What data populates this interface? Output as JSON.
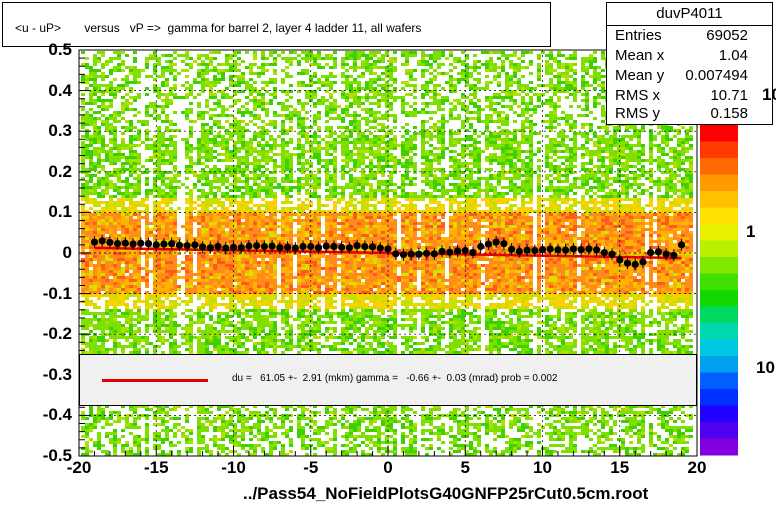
{
  "title": "<u - uP>       versus   vP =>  gamma for barrel 2, layer 4 ladder 11, all wafers",
  "stats": {
    "name": "duvP4011",
    "rows": [
      {
        "label": "Entries",
        "value": "69052"
      },
      {
        "label": "Mean x",
        "value": "1.04"
      },
      {
        "label": "Mean y",
        "value": "0.007494"
      },
      {
        "label": "RMS x",
        "value": "10.71"
      },
      {
        "label": "RMS y",
        "value": "0.158"
      }
    ]
  },
  "fit_text": "du =   61.05 +-  2.91 (mkm) gamma =   -0.66 +-  0.03 (mrad) prob = 0.002",
  "footer": "../Pass54_NoFieldPlotsG40GNFP25rCut0.5cm.root",
  "colors": {
    "fit_line": "#e00000",
    "fit_box_bg": "#f0f0f0",
    "points": "#000000"
  },
  "chart_data": {
    "type": "scatter",
    "title": "<u - uP>       versus   vP =>  gamma for barrel 2, layer 4 ladder 11, all wafers",
    "xlim": [
      -20,
      20
    ],
    "ylim": [
      -0.5,
      0.5
    ],
    "x_ticks": [
      "-20",
      "-15",
      "-10",
      "-5",
      "0",
      "5",
      "10",
      "15",
      "20"
    ],
    "y_ticks": [
      "0.5",
      "0.4",
      "0.3",
      "0.2",
      "0.1",
      "0",
      "-0.1",
      "-0.2",
      "-0.3",
      "-0.4",
      "-0.5"
    ],
    "z_axis_labels": [
      "10",
      "1",
      "10"
    ],
    "grid": true,
    "fit_line": {
      "x": [
        -19,
        19
      ],
      "y": [
        0.0125,
        -0.0125
      ]
    },
    "profile_points": {
      "x": [
        -19,
        -18.5,
        -18,
        -17.5,
        -17,
        -16.5,
        -16,
        -15.5,
        -15,
        -14.5,
        -14,
        -13.5,
        -13,
        -12.5,
        -12,
        -11.5,
        -11,
        -10.5,
        -10,
        -9.5,
        -9,
        -8.5,
        -8,
        -7.5,
        -7,
        -6.5,
        -6,
        -5.5,
        -5,
        -4.5,
        -4,
        -3.5,
        -3,
        -2.5,
        -2,
        -1.5,
        -1,
        -0.5,
        0,
        0.5,
        1,
        1.5,
        2,
        2.5,
        3,
        3.5,
        4,
        4.5,
        5,
        5.5,
        6,
        6.5,
        7,
        7.5,
        8,
        8.5,
        9,
        9.5,
        10,
        10.5,
        11,
        11.5,
        12,
        12.5,
        13,
        13.5,
        14,
        14.5,
        15,
        15.5,
        16,
        16.5,
        17,
        17.5,
        18,
        18.5,
        19
      ],
      "y": [
        0.027,
        0.03,
        0.026,
        0.023,
        0.024,
        0.022,
        0.024,
        0.023,
        0.02,
        0.022,
        0.023,
        0.019,
        0.018,
        0.02,
        0.015,
        0.013,
        0.016,
        0.012,
        0.014,
        0.013,
        0.017,
        0.018,
        0.016,
        0.017,
        0.013,
        0.014,
        0.012,
        0.016,
        0.016,
        0.013,
        0.017,
        0.016,
        0.014,
        0.013,
        0.018,
        0.016,
        0.015,
        0.012,
        0.01,
        -0.002,
        -0.004,
        -0.003,
        -0.003,
        -0.001,
        -0.002,
        0.004,
        0.002,
        0.005,
        0.006,
        0.001,
        0.016,
        0.022,
        0.027,
        0.023,
        0.009,
        0.004,
        0.007,
        0.006,
        0.008,
        0.01,
        0.008,
        0.007,
        0.01,
        0.008,
        0.01,
        0.008,
        0.001,
        -0.003,
        -0.017,
        -0.025,
        -0.028,
        -0.022,
        0.001,
        0.003,
        -0.003,
        -0.006,
        0.02
      ]
    }
  }
}
